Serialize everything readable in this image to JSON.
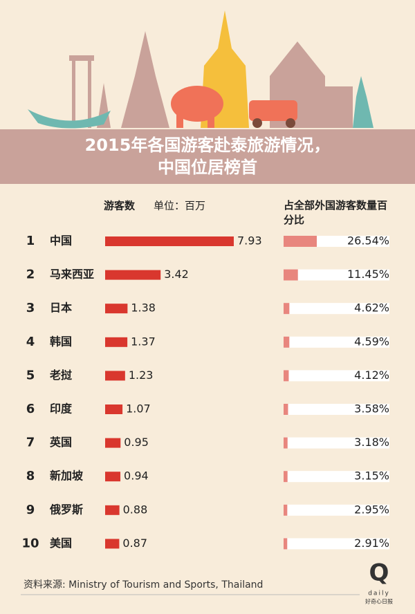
{
  "chart_data": {
    "type": "bar",
    "title": [
      "2015年各国游客赴泰旅游情况，",
      "中国位居榜首"
    ],
    "unit": "单位：百万",
    "ranks": [
      "1",
      "2",
      "3",
      "4",
      "5",
      "6",
      "7",
      "8",
      "9",
      "10"
    ],
    "categories": [
      "中国",
      "马来西亚",
      "日本",
      "韩国",
      "老挝",
      "印度",
      "英国",
      "新加坡",
      "俄罗斯",
      "美国"
    ],
    "series": [
      {
        "name": "游客数",
        "color": "#d9372e",
        "values": [
          7.93,
          3.42,
          1.38,
          1.37,
          1.23,
          1.07,
          0.95,
          0.94,
          0.88,
          0.87
        ]
      },
      {
        "name": "占全部外国游客数量百分比",
        "color": "#e8867e",
        "values": [
          26.54,
          11.45,
          4.62,
          4.59,
          4.12,
          3.58,
          3.18,
          3.15,
          2.95,
          2.91
        ],
        "value_labels": [
          "26.54%",
          "11.45%",
          "4.62%",
          "4.59%",
          "4.12%",
          "3.58%",
          "3.18%",
          "3.15%",
          "2.95%",
          "2.91%"
        ]
      }
    ],
    "source": "资料来源: Ministry of Tourism and Sports, Thailand",
    "logo": {
      "mark": "Q",
      "word": "daily",
      "name": "好奇心日报"
    }
  }
}
